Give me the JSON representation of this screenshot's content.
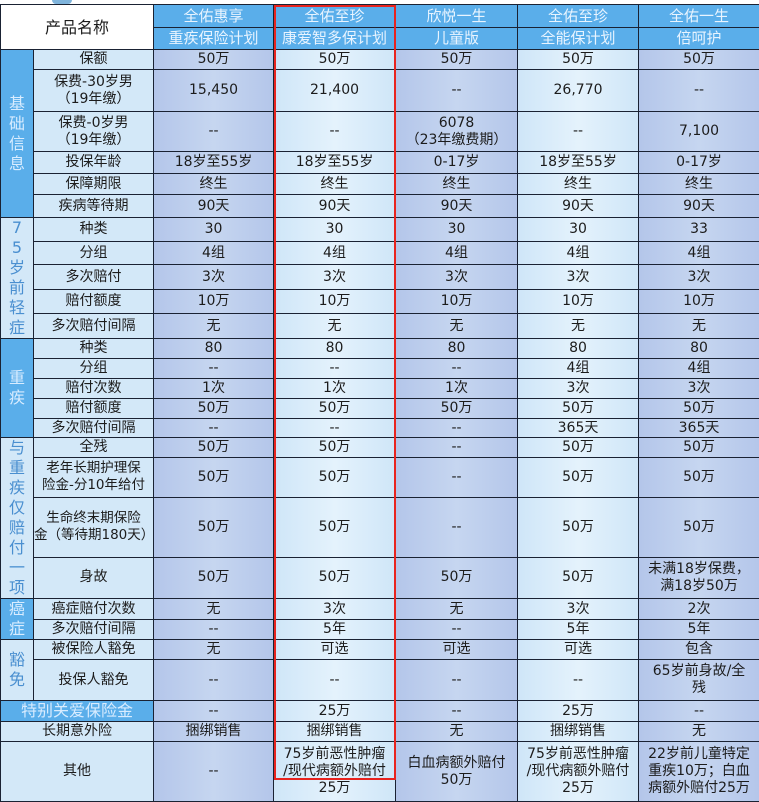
{
  "header": {
    "label": "产品名称",
    "products": [
      {
        "line1": "全佑惠享",
        "line2": "重疾保险计划"
      },
      {
        "line1": "全佑至珍",
        "line2": "康爱智多保计划"
      },
      {
        "line1": "欣悦一生",
        "line2": "儿童版"
      },
      {
        "line1": "全佑至珍",
        "line2": "全能保计划"
      },
      {
        "line1": "全佑一生",
        "line2": "倍呵护"
      }
    ]
  },
  "highlighted_product_index": 1,
  "colors": {
    "header": "#5aaeea",
    "highlight_border": "#e8231e",
    "label": "#d3e8f8"
  },
  "groups": [
    {
      "name": "基础信息",
      "style": "dark",
      "rows": [
        {
          "label": "保额",
          "values": [
            "50万",
            "50万",
            "50万",
            "50万",
            "50万"
          ]
        },
        {
          "label": "保费-30岁男\n（19年缴）",
          "values": [
            "15,450",
            "21,400",
            "--",
            "26,770",
            "--"
          ]
        },
        {
          "label": "保费-0岁男\n（19年缴）",
          "values": [
            "--",
            "--",
            "6078\n（23年缴费期）",
            "--",
            "7,100"
          ]
        },
        {
          "label": "投保年龄",
          "values": [
            "18岁至55岁",
            "18岁至55岁",
            "0-17岁",
            "18岁至55岁",
            "0-17岁"
          ]
        },
        {
          "label": "保障期限",
          "values": [
            "终生",
            "终生",
            "终生",
            "终生",
            "终生"
          ]
        },
        {
          "label": "疾病等待期",
          "values": [
            "90天",
            "90天",
            "90天",
            "90天",
            "90天"
          ]
        }
      ]
    },
    {
      "name": "75岁前轻症",
      "style": "light",
      "rows": [
        {
          "label": "种类",
          "values": [
            "30",
            "30",
            "30",
            "30",
            "33"
          ]
        },
        {
          "label": "分组",
          "values": [
            "4组",
            "4组",
            "4组",
            "4组",
            "4组"
          ]
        },
        {
          "label": "多次赔付",
          "values": [
            "3次",
            "3次",
            "3次",
            "3次",
            "3次"
          ]
        },
        {
          "label": "赔付额度",
          "values": [
            "10万",
            "10万",
            "10万",
            "10万",
            "10万"
          ]
        },
        {
          "label": "多次赔付间隔",
          "values": [
            "无",
            "无",
            "无",
            "无",
            "无"
          ]
        }
      ]
    },
    {
      "name": "重疾",
      "style": "dark",
      "rows": [
        {
          "label": "种类",
          "values": [
            "80",
            "80",
            "80",
            "80",
            "80"
          ]
        },
        {
          "label": "分组",
          "values": [
            "--",
            "--",
            "--",
            "4组",
            "4组"
          ]
        },
        {
          "label": "赔付次数",
          "values": [
            "1次",
            "1次",
            "1次",
            "3次",
            "3次"
          ]
        },
        {
          "label": "赔付额度",
          "values": [
            "50万",
            "50万",
            "50万",
            "50万",
            "50万"
          ]
        },
        {
          "label": "多次赔付间隔",
          "values": [
            "--",
            "--",
            "--",
            "365天",
            "365天"
          ]
        }
      ]
    },
    {
      "name": "与重疾仅赔付一项",
      "style": "light",
      "rows": [
        {
          "label": "全残",
          "values": [
            "50万",
            "50万",
            "--",
            "50万",
            "50万"
          ]
        },
        {
          "label": "老年长期护理保\n险金-分10年给付",
          "values": [
            "50万",
            "50万",
            "--",
            "50万",
            "50万"
          ]
        },
        {
          "label": "生命终末期保险\n金（等待期180天）",
          "values": [
            "50万",
            "50万",
            "--",
            "50万",
            "50万"
          ]
        },
        {
          "label": "身故",
          "values": [
            "50万",
            "50万",
            "50万",
            "50万",
            "未满18岁保费，\n满18岁50万"
          ]
        }
      ]
    },
    {
      "name": "癌症",
      "style": "dark",
      "rows": [
        {
          "label": "癌症赔付次数",
          "values": [
            "无",
            "3次",
            "无",
            "3次",
            "2次"
          ]
        },
        {
          "label": "多次赔付间隔",
          "values": [
            "--",
            "5年",
            "--",
            "5年",
            "5年"
          ]
        }
      ]
    },
    {
      "name": "豁免",
      "style": "light",
      "rows": [
        {
          "label": "被保险人豁免",
          "values": [
            "无",
            "可选",
            "可选",
            "可选",
            "包含"
          ]
        },
        {
          "label": "投保人豁免",
          "values": [
            "--",
            "--",
            "--",
            "--",
            "65岁前身故/全\n残"
          ]
        }
      ]
    }
  ],
  "extra_rows": [
    {
      "label": "特别关爱保险金",
      "style": "dark",
      "values": [
        "--",
        "25万",
        "--",
        "25万",
        "--"
      ]
    },
    {
      "label": "长期意外险",
      "style": "light",
      "values": [
        "捆绑销售",
        "捆绑销售",
        "无",
        "捆绑销售",
        "无"
      ]
    },
    {
      "label": "其他",
      "style": "light",
      "values": [
        "--",
        "75岁前恶性肿瘤\n/现代病额外赔付\n25万",
        "白血病额外赔付\n50万",
        "75岁前恶性肿瘤\n/现代病额外赔付\n25万",
        "22岁前儿童特定\n重疾10万；白血\n病额外赔付25万"
      ]
    }
  ]
}
